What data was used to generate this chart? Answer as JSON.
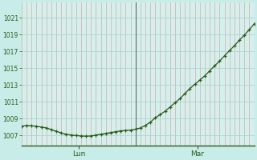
{
  "background_color": "#c8ece8",
  "plot_bg_color": "#d4f0ec",
  "line_color": "#2d5a1b",
  "marker_color": "#2d5a1b",
  "day_vline_color": "#666666",
  "hgrid_color": "#a8d8d4",
  "vgrid_minor_color": "#dda8a8",
  "ylabel_color": "#2d5a1b",
  "xlabel_color": "#2d5a1b",
  "yticks": [
    1007,
    1009,
    1011,
    1013,
    1015,
    1017,
    1019,
    1021
  ],
  "ylim": [
    1005.8,
    1022.8
  ],
  "xlim": [
    0,
    47
  ],
  "day_labels": [
    [
      "Lun",
      11.5
    ],
    [
      "Mar",
      35.5
    ]
  ],
  "day_vlines": [
    23
  ],
  "minor_vlines_per_day": 24,
  "values": [
    1008.1,
    1008.2,
    1008.15,
    1008.1,
    1008.0,
    1007.9,
    1007.7,
    1007.5,
    1007.3,
    1007.15,
    1007.05,
    1007.0,
    1006.95,
    1006.92,
    1006.95,
    1007.05,
    1007.15,
    1007.25,
    1007.35,
    1007.45,
    1007.55,
    1007.6,
    1007.65,
    1007.75,
    1007.9,
    1008.2,
    1008.6,
    1009.1,
    1009.5,
    1009.9,
    1010.4,
    1010.9,
    1011.4,
    1012.0,
    1012.6,
    1013.1,
    1013.6,
    1014.1,
    1014.7,
    1015.3,
    1015.85,
    1016.5,
    1017.1,
    1017.7,
    1018.35,
    1018.95,
    1019.6,
    1020.3,
    1021.1
  ]
}
